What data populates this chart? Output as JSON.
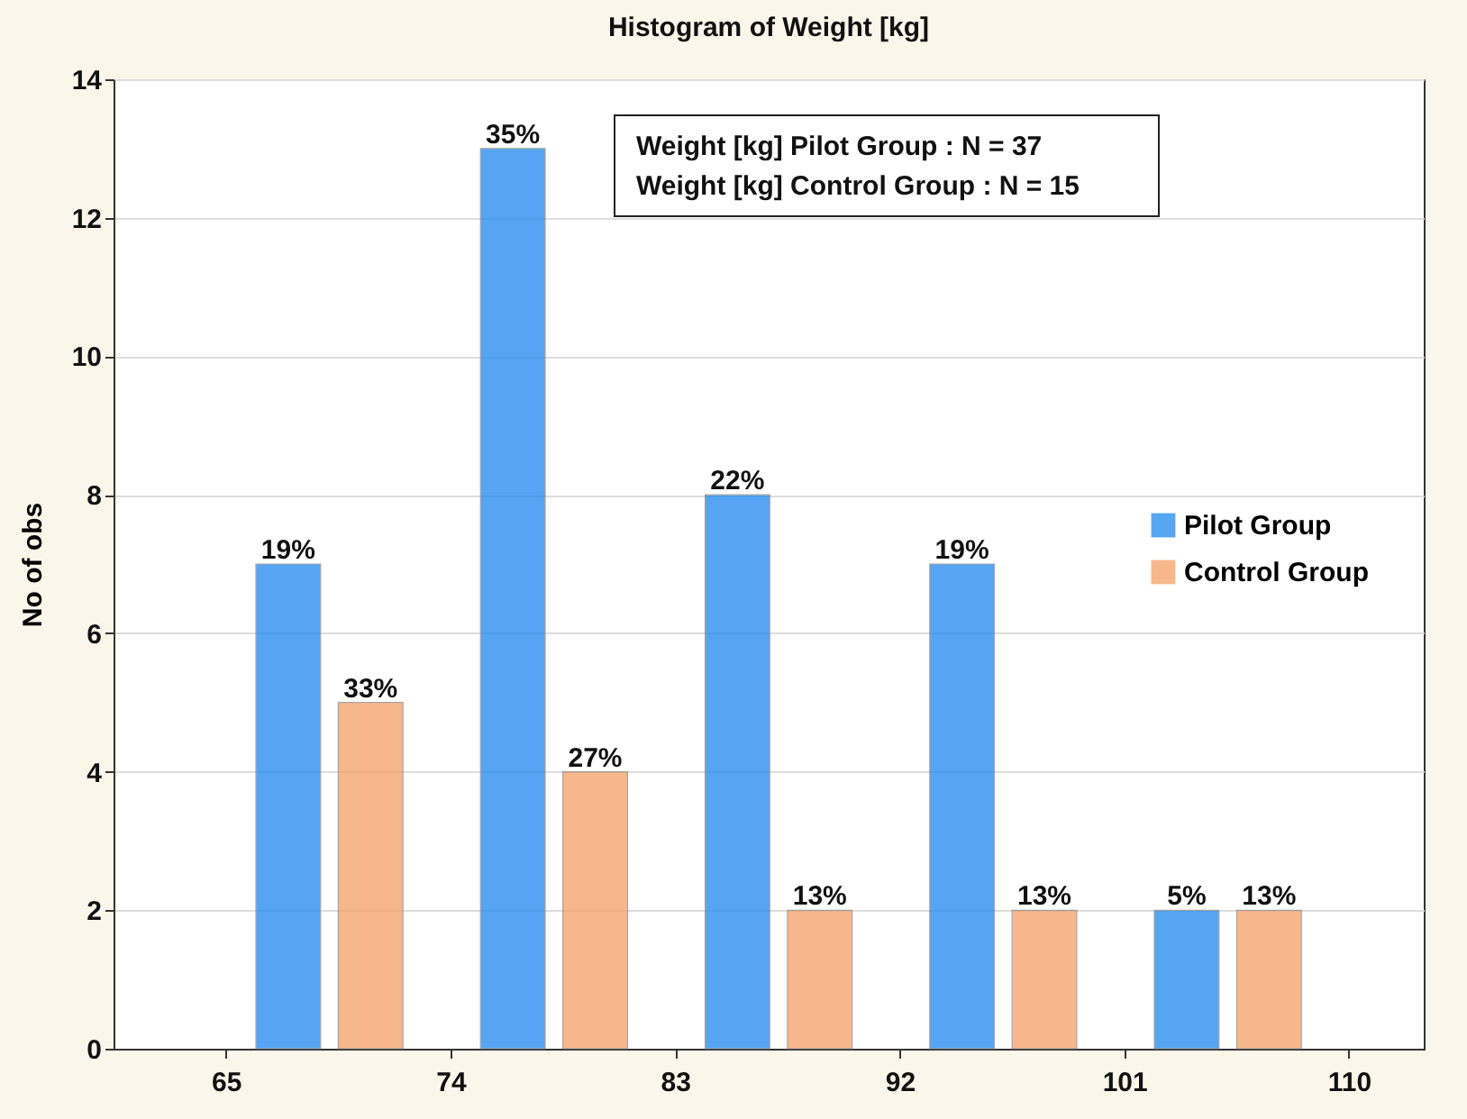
{
  "chart_data": {
    "type": "histogram",
    "title": "Histogram of Weight [kg]",
    "ylabel": "No of obs",
    "bins": [
      65,
      74,
      83,
      92,
      101,
      110
    ],
    "series": [
      {
        "name": "Pilot Group",
        "color": "#1f88ee",
        "values": [
          7,
          13,
          8,
          7,
          2
        ]
      },
      {
        "name": "Control Group",
        "color": "#f3a064",
        "values": [
          5,
          4,
          2,
          2,
          2
        ]
      }
    ],
    "xlim": [
      60.5,
      113
    ],
    "xticks": [
      65,
      74,
      83,
      92,
      101,
      110
    ],
    "ylim": [
      0,
      14
    ],
    "yticks": [
      0,
      2,
      4,
      6,
      8,
      10,
      12,
      14
    ],
    "grid": "y",
    "legend": "right",
    "annotations": [
      "Weight [kg] Pilot Group :  N = 37",
      "Weight [kg] Control Group :  N = 15",
      {
        "text": "19%",
        "x": 67.5,
        "y": 7
      },
      {
        "text": "35%",
        "x": 76.5,
        "y": 13
      },
      {
        "text": "22%",
        "x": 85.5,
        "y": 8
      },
      {
        "text": "19%",
        "x": 94.5,
        "y": 7
      },
      {
        "text": "5%",
        "x": 103.5,
        "y": 2
      },
      {
        "text": "33%",
        "x": 70.8,
        "y": 5
      },
      {
        "text": "27%",
        "x": 79.8,
        "y": 4
      },
      {
        "text": "13%",
        "x": 88.8,
        "y": 2
      },
      {
        "text": "13%",
        "x": 97.8,
        "y": 2
      },
      {
        "text": "13%",
        "x": 106.8,
        "y": 2
      }
    ]
  }
}
